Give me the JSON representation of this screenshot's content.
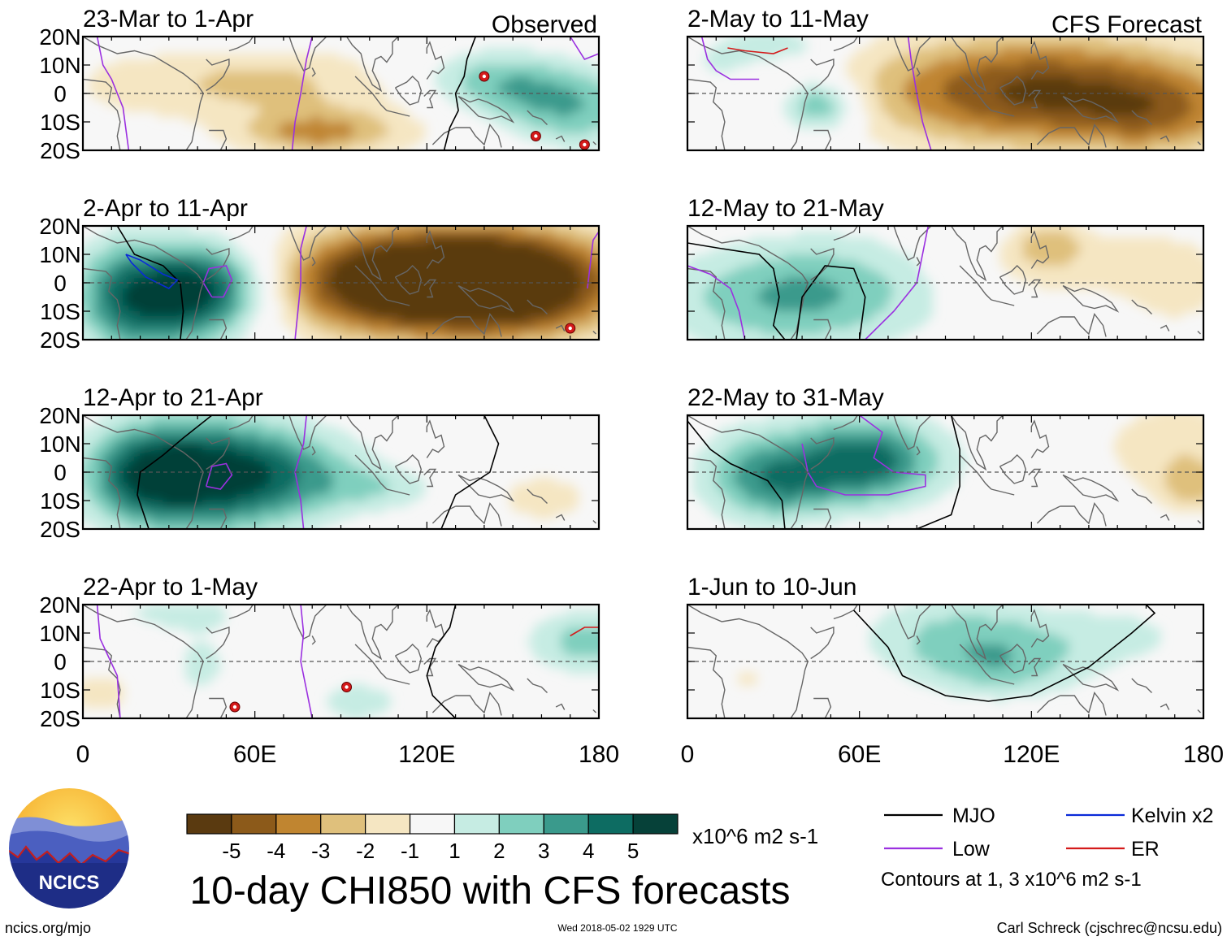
{
  "chart_data": {
    "type": "heatmap",
    "title": "10-day CHI850 with CFS forecasts",
    "variable": "CHI850",
    "units": "x10^6 m2 s-1",
    "x_ticks": [
      "0",
      "60E",
      "120E",
      "180"
    ],
    "y_ticks": [
      "20N",
      "10N",
      "0",
      "10S",
      "20S"
    ],
    "xlim": [
      0,
      180
    ],
    "ylim": [
      -20,
      20
    ],
    "columns": [
      {
        "name": "Observed",
        "periods": [
          "23-Mar to 1-Apr",
          "2-Apr to 11-Apr",
          "12-Apr to 21-Apr",
          "22-Apr to 1-May"
        ]
      },
      {
        "name": "CFS Forecast",
        "periods": [
          "2-May to 11-May",
          "12-May to 21-May",
          "22-May to 31-May",
          "1-Jun to 10-Jun"
        ]
      }
    ],
    "colorbar": {
      "labels": [
        "-5",
        "-4",
        "-3",
        "-2",
        "-1",
        "1",
        "2",
        "3",
        "4",
        "5"
      ],
      "colors": [
        "#5a3a10",
        "#8c5a1a",
        "#c08530",
        "#dfc07c",
        "#f5e6c2",
        "#f7f7f7",
        "#c6ece3",
        "#7fcfbe",
        "#3a9a8c",
        "#0d6c62",
        "#064139"
      ]
    },
    "legend": [
      {
        "label": "MJO",
        "color": "#000000"
      },
      {
        "label": "Kelvin x2",
        "color": "#0a2ad8"
      },
      {
        "label": "Low",
        "color": "#9b30e0"
      },
      {
        "label": "ER",
        "color": "#d41a1a"
      }
    ],
    "contour_note": "Contours at 1, 3 x10^6 m2 s-1"
  },
  "footer": {
    "logo_text": "NCICS",
    "site": "ncics.org/mjo",
    "timestamp": "Wed 2018-05-02 1929 UTC",
    "author": "Carl Schreck (cjschrec@ncsu.edu)"
  }
}
